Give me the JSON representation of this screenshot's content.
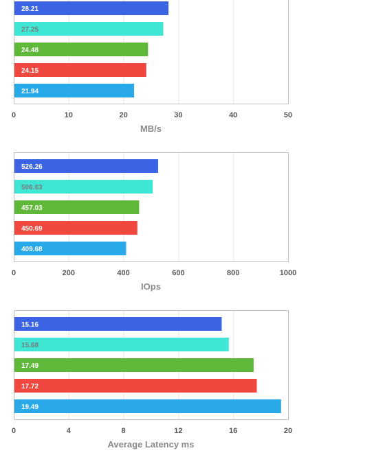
{
  "colors": [
    "#3b63e4",
    "#40e6d4",
    "#5fb83a",
    "#f0483e",
    "#29a9e8"
  ],
  "label_colors": [
    "#ffffff",
    "#7a7a7a",
    "#ffffff",
    "#ffffff",
    "#ffffff"
  ],
  "chart_data": [
    {
      "type": "bar",
      "orientation": "horizontal",
      "xlabel": "MB/s",
      "xlim": [
        0,
        50
      ],
      "ticks": [
        "0",
        "10",
        "20",
        "30",
        "40",
        "50"
      ],
      "values": [
        28.21,
        27.25,
        24.48,
        24.15,
        21.94
      ],
      "labels": [
        "28.21",
        "27.25",
        "24.48",
        "24.15",
        "21.94"
      ],
      "grid": true
    },
    {
      "type": "bar",
      "orientation": "horizontal",
      "xlabel": "IOps",
      "xlim": [
        0,
        1000
      ],
      "ticks": [
        "0",
        "200",
        "400",
        "600",
        "800",
        "1000"
      ],
      "values": [
        526.26,
        506.63,
        457.03,
        450.69,
        409.68
      ],
      "labels": [
        "526.26",
        "506.63",
        "457.03",
        "450.69",
        "409.68"
      ],
      "grid": true
    },
    {
      "type": "bar",
      "orientation": "horizontal",
      "xlabel": "Average Latency ms",
      "xlim": [
        0,
        20
      ],
      "ticks": [
        "0",
        "4",
        "8",
        "12",
        "16",
        "20"
      ],
      "values": [
        15.16,
        15.68,
        17.49,
        17.72,
        19.49
      ],
      "labels": [
        "15.16",
        "15.68",
        "17.49",
        "17.72",
        "19.49"
      ],
      "grid": true
    }
  ]
}
